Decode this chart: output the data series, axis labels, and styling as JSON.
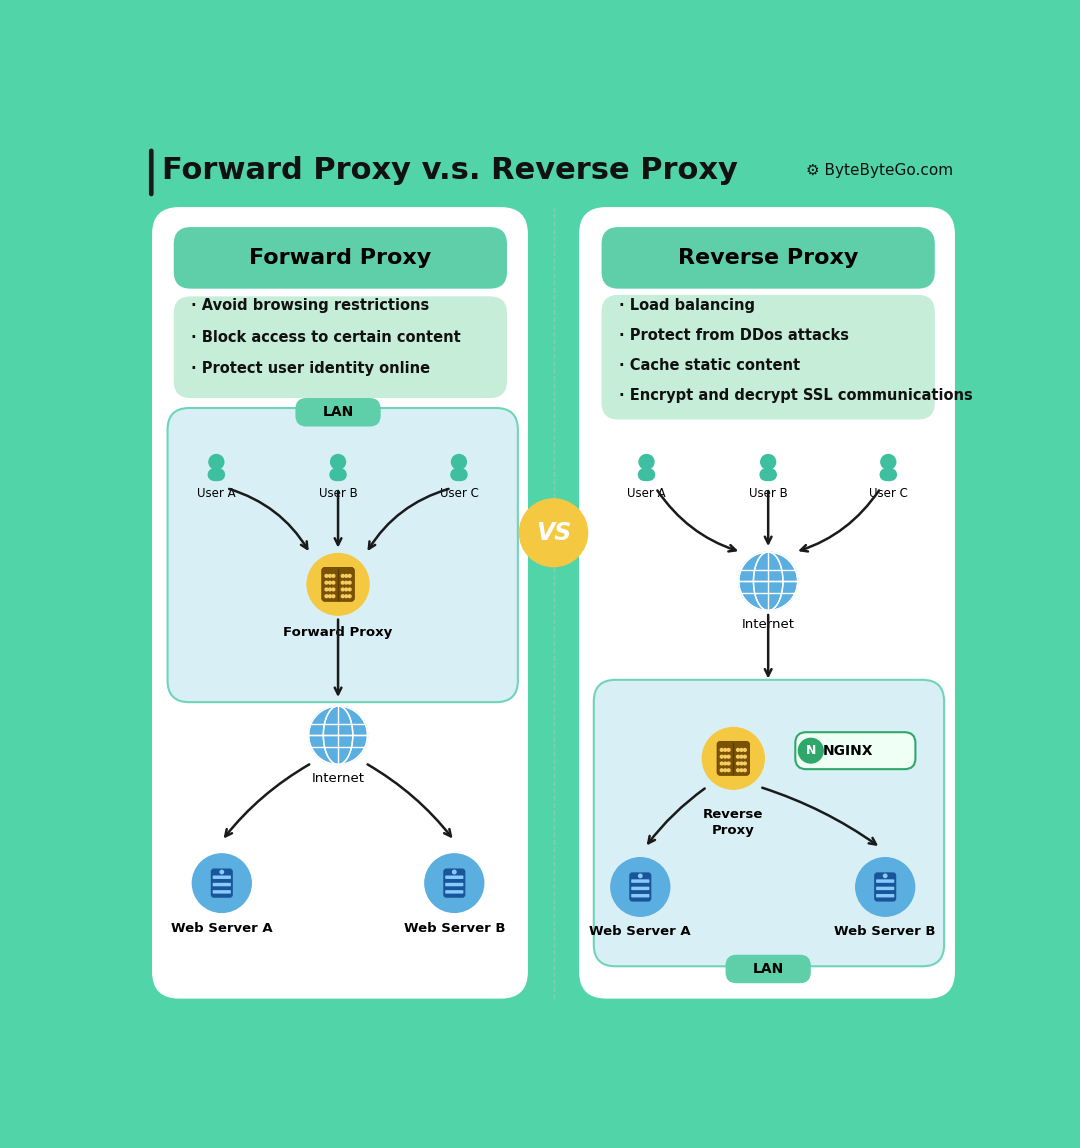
{
  "title": "Forward Proxy v.s. Reverse Proxy",
  "brand": "⚙ ByteByteGo.com",
  "bg_color": "#50D4A8",
  "white_panel_color": "#FFFFFF",
  "light_green_box_color": "#C5EDD8",
  "light_blue_box_color": "#D8F0F5",
  "teal_header_color": "#5ECFA8",
  "forward_proxy_title": "Forward Proxy",
  "reverse_proxy_title": "Reverse Proxy",
  "forward_bullets": [
    "· Avoid browsing restrictions",
    "· Block access to certain content",
    "· Protect user identity online"
  ],
  "reverse_bullets": [
    "· Load balancing",
    "· Protect from DDos attacks",
    "· Cache static content",
    "· Encrypt and decrypt SSL communications"
  ],
  "user_color": "#3DBFA0",
  "proxy_color": "#F5C842",
  "internet_color": "#5BAEE0",
  "server_color": "#5BAEE0",
  "lan_tag_color": "#3DBFA0",
  "vs_color": "#F5C842",
  "arrow_color": "#1A1A1A",
  "text_color": "#1A1A1A",
  "nginx_green": "#2DA86A"
}
